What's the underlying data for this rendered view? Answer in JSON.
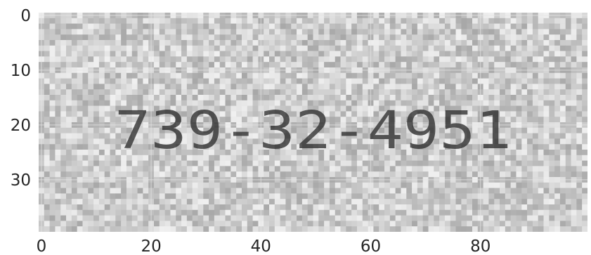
{
  "image": {
    "rows": 40,
    "cols": 100,
    "colormap": "gray",
    "text_in_image": "739-32-4951",
    "background_tone": "#c4c4c4",
    "grid_color": "#e6e6e6"
  },
  "axes": {
    "x_ticks": [
      {
        "value": 0,
        "label": "0"
      },
      {
        "value": 20,
        "label": "20"
      },
      {
        "value": 40,
        "label": "40"
      },
      {
        "value": 60,
        "label": "60"
      },
      {
        "value": 80,
        "label": "80"
      }
    ],
    "y_ticks": [
      {
        "value": 0,
        "label": "0"
      },
      {
        "value": 10,
        "label": "10"
      },
      {
        "value": 20,
        "label": "20"
      },
      {
        "value": 30,
        "label": "30"
      }
    ]
  }
}
